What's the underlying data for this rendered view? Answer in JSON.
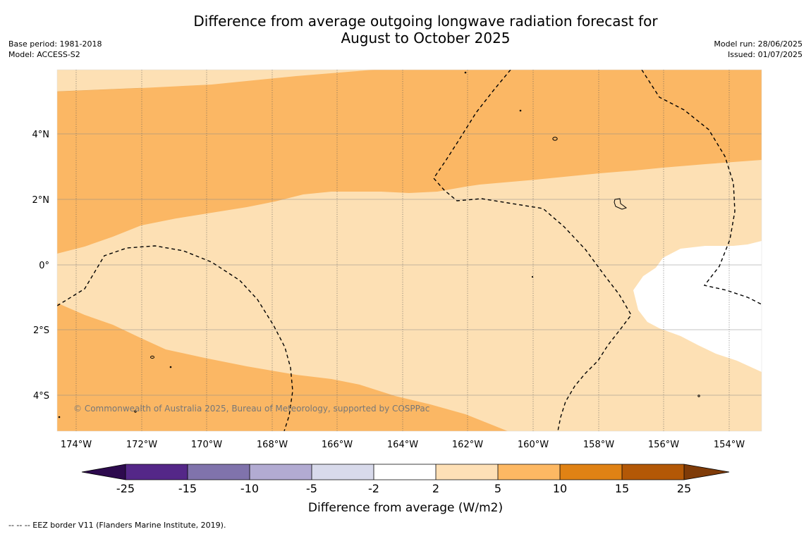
{
  "title": {
    "line1": "Difference from average outgoing longwave radiation forecast for",
    "line2": "August to October 2025"
  },
  "meta": {
    "base_period": "Base period: 1981-2018",
    "model": "Model: ACCESS-S2",
    "model_run": "Model run: 28/06/2025",
    "issued": "Issued: 01/07/2025"
  },
  "map": {
    "lon_ticks": [
      "174°W",
      "172°W",
      "170°W",
      "168°W",
      "166°W",
      "164°W",
      "162°W",
      "160°W",
      "158°W",
      "156°W",
      "154°W"
    ],
    "lat_ticks": [
      "4°N",
      "2°N",
      "0°",
      "2°S",
      "4°S"
    ],
    "copyright": "© Commonwealth of Australia 2025, Bureau of Meteorology, supported by COSPPac",
    "colors": {
      "band_2_5": "#fde0b4",
      "band_5_10": "#fbb764",
      "band_neutral": "#ffffff"
    }
  },
  "colorbar": {
    "label": "Difference from average (W/m2)",
    "ticks": [
      "-25",
      "-15",
      "-10",
      "-5",
      "-2",
      "2",
      "5",
      "10",
      "15",
      "25"
    ],
    "colors": [
      "#2d0a4e",
      "#542788",
      "#8073ac",
      "#b2abd2",
      "#d8daeb",
      "#ffffff",
      "#fee0b6",
      "#fdb863",
      "#e08214",
      "#b35806",
      "#7f3b08"
    ]
  },
  "footnote": "--  --  -- EEZ border V11 (Flanders Marine Institute, 2019)."
}
